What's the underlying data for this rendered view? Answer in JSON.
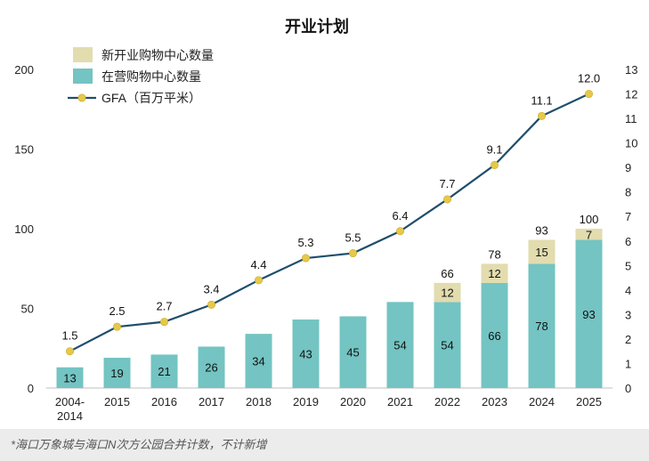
{
  "footnote": "*海口万象城与海口N次方公园合并计数，不计新增",
  "chart_data": {
    "type": "bar",
    "title": "开业计划",
    "categories": [
      "2004-\n2014",
      "2015",
      "2016",
      "2017",
      "2018",
      "2019",
      "2020",
      "2021",
      "2022",
      "2023",
      "2024",
      "2025"
    ],
    "series": [
      {
        "name": "在营购物中心数量",
        "type": "bar",
        "axis": "left",
        "color": "#73c4c2",
        "values": [
          13,
          19,
          21,
          26,
          34,
          43,
          45,
          54,
          54,
          66,
          78,
          93
        ]
      },
      {
        "name": "新开业购物中心数量",
        "type": "bar",
        "axis": "left",
        "color": "#e2dcae",
        "values": [
          null,
          null,
          null,
          null,
          null,
          null,
          null,
          null,
          12,
          12,
          15,
          7
        ]
      },
      {
        "name": "GFA（百万平米）",
        "type": "line",
        "axis": "right",
        "color": "#1f4e6b",
        "marker_color": "#e6c94a",
        "values": [
          1.5,
          2.5,
          2.7,
          3.4,
          4.4,
          5.3,
          5.5,
          6.4,
          7.7,
          9.1,
          11.1,
          12.0
        ]
      }
    ],
    "totals": [
      null,
      null,
      null,
      null,
      null,
      null,
      null,
      null,
      66,
      78,
      93,
      100
    ],
    "y_left": {
      "lim": [
        0,
        200
      ],
      "ticks": [
        0,
        50,
        100,
        150,
        200
      ]
    },
    "y_right": {
      "lim": [
        0,
        13
      ],
      "ticks": [
        0,
        1,
        2,
        3,
        4,
        5,
        6,
        7,
        8,
        9,
        10,
        11,
        12,
        13
      ]
    },
    "gfa_labels": [
      "1.5",
      "2.5",
      "2.7",
      "3.4",
      "4.4",
      "5.3",
      "5.5",
      "6.4",
      "7.7",
      "9.1",
      "11.1",
      "12.0"
    ],
    "legend_order": [
      "新开业购物中心数量",
      "在营购物中心数量",
      "GFA（百万平米）"
    ],
    "legend_position": "top-left",
    "grid": false
  }
}
